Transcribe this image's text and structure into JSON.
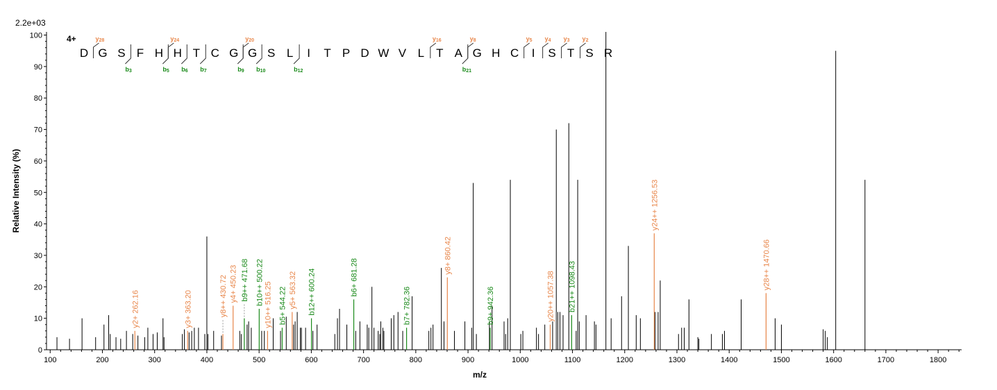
{
  "colors": {
    "y_ion": "#e8864a",
    "b_ion": "#1a8a1a",
    "other": "#000000",
    "charge": "#1a1aa6"
  },
  "chart_data": {
    "type": "bar",
    "scale_label": "2.2e+03",
    "charge_label": "4+",
    "xlabel": "m/z",
    "ylabel": "Relative   Intensity (%)",
    "xlim": [
      93,
      1845
    ],
    "ylim": [
      0,
      101
    ],
    "xticks": [
      100,
      200,
      300,
      400,
      500,
      600,
      700,
      800,
      900,
      1000,
      1100,
      1200,
      1300,
      1400,
      1500,
      1600,
      1700,
      1800
    ],
    "yticks": [
      0,
      10,
      20,
      30,
      40,
      50,
      60,
      70,
      80,
      90,
      100
    ],
    "sequence": [
      "D",
      "G",
      "S",
      "F",
      "H",
      "H",
      "T",
      "C",
      "G",
      "G",
      "S",
      "L",
      "I",
      "T",
      "P",
      "D",
      "W",
      "V",
      "L",
      "T",
      "A",
      "G",
      "H",
      "C",
      "I",
      "S",
      "T",
      "S",
      "R"
    ],
    "y_marks": [
      {
        "after": 1,
        "label": "y",
        "sub": "28"
      },
      {
        "after": 5,
        "label": "y",
        "sub": "24"
      },
      {
        "after": 9,
        "label": "y",
        "sub": "20"
      },
      {
        "after": 19,
        "label": "y",
        "sub": "16"
      },
      {
        "after": 21,
        "label": "y",
        "sub": "8"
      },
      {
        "after": 24,
        "label": "y",
        "sub": "5"
      },
      {
        "after": 25,
        "label": "y",
        "sub": "4"
      },
      {
        "after": 26,
        "label": "y",
        "sub": "3"
      },
      {
        "after": 27,
        "label": "y",
        "sub": "2"
      }
    ],
    "b_marks": [
      {
        "after": 3,
        "label": "b",
        "sub": "3"
      },
      {
        "after": 5,
        "label": "b",
        "sub": "5"
      },
      {
        "after": 6,
        "label": "b",
        "sub": "6"
      },
      {
        "after": 7,
        "label": "b",
        "sub": "7"
      },
      {
        "after": 9,
        "label": "b",
        "sub": "9"
      },
      {
        "after": 10,
        "label": "b",
        "sub": "10"
      },
      {
        "after": 12,
        "label": "b",
        "sub": "12"
      },
      {
        "after": 21,
        "label": "b",
        "sub": "21"
      }
    ],
    "annotated_peaks": [
      {
        "mz": 262.16,
        "y": 6,
        "label": "y2+ 262.16",
        "type": "y"
      },
      {
        "mz": 363.2,
        "y": 6,
        "label": "y3+ 363.20",
        "type": "y"
      },
      {
        "mz": 430.72,
        "y": 5,
        "label": "y8++ 430.72",
        "type": "y",
        "dashed": true
      },
      {
        "mz": 450.23,
        "y": 14,
        "label": "y4+ 450.23",
        "type": "y"
      },
      {
        "mz": 471.68,
        "y": 10,
        "label": "b9++ 471.68",
        "type": "b",
        "dashed": true
      },
      {
        "mz": 500.22,
        "y": 13,
        "label": "b10++ 500.22",
        "type": "b"
      },
      {
        "mz": 516.25,
        "y": 6,
        "label": "y10++ 516.25",
        "type": "y"
      },
      {
        "mz": 544.22,
        "y": 7,
        "label": "b5+ 544.22",
        "type": "b"
      },
      {
        "mz": 563.32,
        "y": 12,
        "label": "y5+ 563.32",
        "type": "y"
      },
      {
        "mz": 600.24,
        "y": 10,
        "label": "b12++ 600.24",
        "type": "b"
      },
      {
        "mz": 681.28,
        "y": 16,
        "label": "b6+ 681.28",
        "type": "b"
      },
      {
        "mz": 782.36,
        "y": 7,
        "label": "b7+ 782.36",
        "type": "b"
      },
      {
        "mz": 860.42,
        "y": 23,
        "label": "y8+ 860.42",
        "type": "y"
      },
      {
        "mz": 942.36,
        "y": 7,
        "label": "b9+ 942.36",
        "type": "b"
      },
      {
        "mz": 1057.38,
        "y": 8,
        "label": "y20++ 1057.38",
        "type": "y"
      },
      {
        "mz": 1098.43,
        "y": 11,
        "label": "b21++ 1098.43",
        "type": "b"
      },
      {
        "mz": 1256.53,
        "y": 37,
        "label": "y24++ 1256.53",
        "type": "y"
      },
      {
        "mz": 1470.66,
        "y": 18,
        "label": "y28++ 1470.66",
        "type": "y"
      }
    ],
    "peaks": [
      [
        113,
        4
      ],
      [
        137,
        3.5
      ],
      [
        161,
        10
      ],
      [
        187,
        4
      ],
      [
        203,
        8
      ],
      [
        212,
        11
      ],
      [
        215,
        5
      ],
      [
        226,
        4
      ],
      [
        235,
        3.5
      ],
      [
        246,
        6
      ],
      [
        258,
        5
      ],
      [
        268,
        4.5
      ],
      [
        281,
        4
      ],
      [
        287,
        7
      ],
      [
        297,
        5
      ],
      [
        305,
        5.5
      ],
      [
        316,
        10
      ],
      [
        318,
        4
      ],
      [
        353,
        5
      ],
      [
        357,
        6.5
      ],
      [
        366,
        5.5
      ],
      [
        371,
        6
      ],
      [
        376,
        7
      ],
      [
        384,
        7
      ],
      [
        396,
        5
      ],
      [
        400,
        36
      ],
      [
        402,
        5
      ],
      [
        413,
        6
      ],
      [
        428,
        4.5
      ],
      [
        463,
        6
      ],
      [
        466,
        5
      ],
      [
        477,
        8
      ],
      [
        480,
        9
      ],
      [
        485,
        7
      ],
      [
        505,
        6
      ],
      [
        510,
        6
      ],
      [
        527,
        10
      ],
      [
        541,
        6
      ],
      [
        552,
        10.5
      ],
      [
        566,
        8
      ],
      [
        569,
        9
      ],
      [
        573,
        12
      ],
      [
        579,
        7
      ],
      [
        581,
        7
      ],
      [
        589,
        7
      ],
      [
        603,
        6
      ],
      [
        611,
        8
      ],
      [
        645,
        5
      ],
      [
        650,
        10
      ],
      [
        654,
        13
      ],
      [
        668,
        8
      ],
      [
        685,
        6
      ],
      [
        693,
        9
      ],
      [
        707,
        8
      ],
      [
        710,
        7
      ],
      [
        716,
        20
      ],
      [
        720,
        7
      ],
      [
        728,
        6
      ],
      [
        731,
        5
      ],
      [
        733,
        9
      ],
      [
        737,
        7
      ],
      [
        739,
        6
      ],
      [
        753,
        10
      ],
      [
        758,
        11
      ],
      [
        766,
        12
      ],
      [
        775,
        6
      ],
      [
        793,
        17
      ],
      [
        825,
        6
      ],
      [
        829,
        7
      ],
      [
        833,
        8
      ],
      [
        849,
        26
      ],
      [
        854,
        9
      ],
      [
        874,
        6
      ],
      [
        894,
        9
      ],
      [
        907,
        7
      ],
      [
        910,
        53
      ],
      [
        916,
        5
      ],
      [
        941,
        9
      ],
      [
        946,
        14
      ],
      [
        969,
        9
      ],
      [
        972,
        5
      ],
      [
        976,
        10
      ],
      [
        981,
        54
      ],
      [
        1001,
        5
      ],
      [
        1005,
        6
      ],
      [
        1031,
        7
      ],
      [
        1035,
        5
      ],
      [
        1047,
        8
      ],
      [
        1062,
        9
      ],
      [
        1069,
        70
      ],
      [
        1072,
        12
      ],
      [
        1076,
        12
      ],
      [
        1082,
        11
      ],
      [
        1093,
        72
      ],
      [
        1107,
        6
      ],
      [
        1110,
        54
      ],
      [
        1113,
        9
      ],
      [
        1126,
        11
      ],
      [
        1142,
        9
      ],
      [
        1145,
        8
      ],
      [
        1164,
        101
      ],
      [
        1174,
        10
      ],
      [
        1194,
        17
      ],
      [
        1207,
        33
      ],
      [
        1222,
        11
      ],
      [
        1230,
        10
      ],
      [
        1258,
        12
      ],
      [
        1264,
        12
      ],
      [
        1268,
        22
      ],
      [
        1303,
        5
      ],
      [
        1309,
        7
      ],
      [
        1314,
        7
      ],
      [
        1323,
        16
      ],
      [
        1340,
        4
      ],
      [
        1342,
        3.5
      ],
      [
        1366,
        5
      ],
      [
        1387,
        5
      ],
      [
        1391,
        6
      ],
      [
        1423,
        16
      ],
      [
        1488,
        10
      ],
      [
        1500,
        8
      ],
      [
        1580,
        6.5
      ],
      [
        1584,
        6
      ],
      [
        1588,
        4
      ],
      [
        1604,
        95
      ],
      [
        1660,
        54
      ]
    ]
  }
}
